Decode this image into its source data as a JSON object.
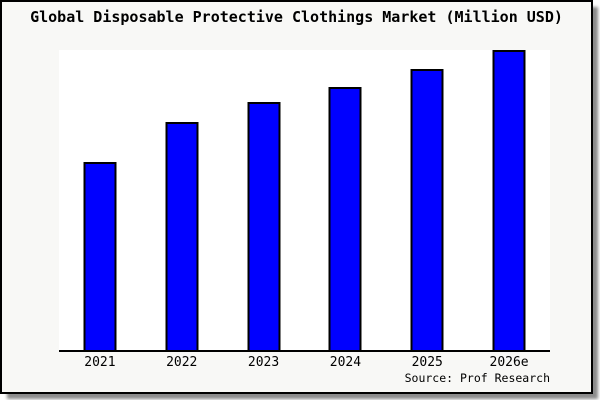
{
  "chart_data": {
    "type": "bar",
    "title": "Global Disposable Protective Clothings Market (Million USD)",
    "categories": [
      "2021",
      "2022",
      "2023",
      "2024",
      "2025",
      "2026e"
    ],
    "values": [
      62.7,
      76.0,
      82.7,
      87.7,
      93.7,
      100.0
    ],
    "units": "relative bar height, % of tallest bar (y-axis unlabeled in image)",
    "xlabel": "",
    "ylabel": "",
    "ylim": [
      0,
      100
    ],
    "grid": false,
    "legend": false,
    "source": "Source: Prof Research"
  },
  "colors": {
    "bar_fill": "#0000ff",
    "bar_border": "#000000",
    "panel_background": "#f8f8f6",
    "plot_background": "#ffffff",
    "panel_border": "#000000",
    "shadow": "#8b8b8b",
    "text": "#000000"
  }
}
